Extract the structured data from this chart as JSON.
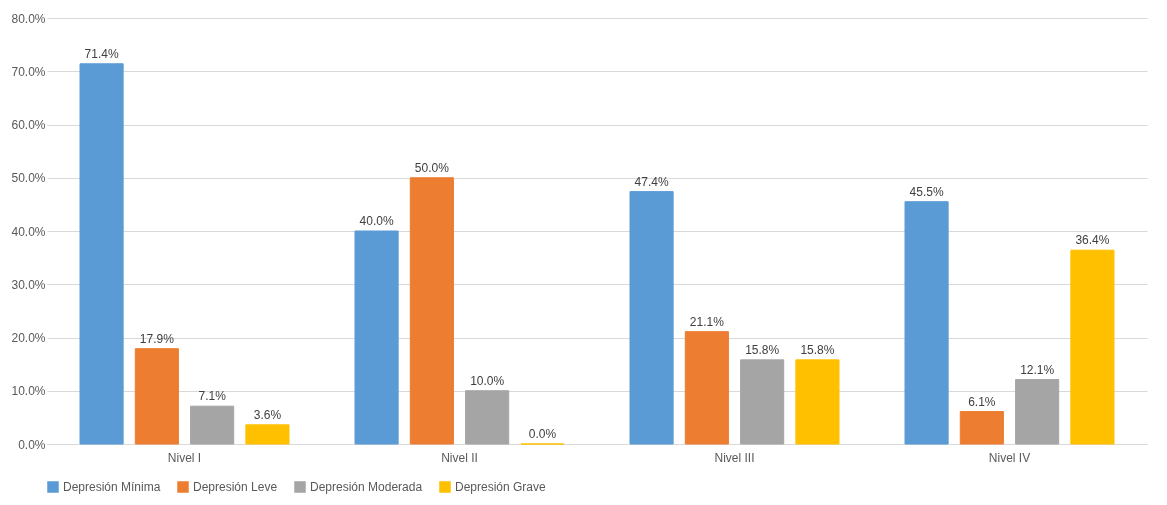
{
  "chart_data": {
    "type": "bar",
    "categories": [
      "Nivel I",
      "Nivel II",
      "Nivel III",
      "Nivel IV"
    ],
    "series": [
      {
        "name": "Depresión Mínima",
        "color": "#5b9bd5",
        "values": [
          71.4,
          40.0,
          47.4,
          45.5
        ],
        "value_labels": [
          "71.4%",
          "40.0%",
          "47.4%",
          "45.5%"
        ]
      },
      {
        "name": "Depresión Leve",
        "color": "#ed7d31",
        "values": [
          17.9,
          50.0,
          21.1,
          6.1
        ],
        "value_labels": [
          "17.9%",
          "50.0%",
          "21.1%",
          "6.1%"
        ]
      },
      {
        "name": "Depresión Moderada",
        "color": "#a5a5a5",
        "values": [
          7.1,
          10.0,
          15.8,
          12.1
        ],
        "value_labels": [
          "7.1%",
          "10.0%",
          "15.8%",
          "12.1%"
        ]
      },
      {
        "name": "Depresión Grave",
        "color": "#ffc000",
        "values": [
          3.6,
          0.0,
          15.8,
          36.4
        ],
        "value_labels": [
          "3.6%",
          "0.0%",
          "15.8%",
          "36.4%"
        ]
      }
    ],
    "ylim": [
      0,
      80
    ],
    "yticks": [
      {
        "value": 0,
        "label": "0.0%"
      },
      {
        "value": 10,
        "label": "10.0%"
      },
      {
        "value": 20,
        "label": "20.0%"
      },
      {
        "value": 30,
        "label": "30.0%"
      },
      {
        "value": 40,
        "label": "40.0%"
      },
      {
        "value": 50,
        "label": "50.0%"
      },
      {
        "value": 60,
        "label": "60.0%"
      },
      {
        "value": 70,
        "label": "70.0%"
      },
      {
        "value": 80,
        "label": "80.0%"
      }
    ],
    "grid": "y",
    "legend": "bottom"
  }
}
